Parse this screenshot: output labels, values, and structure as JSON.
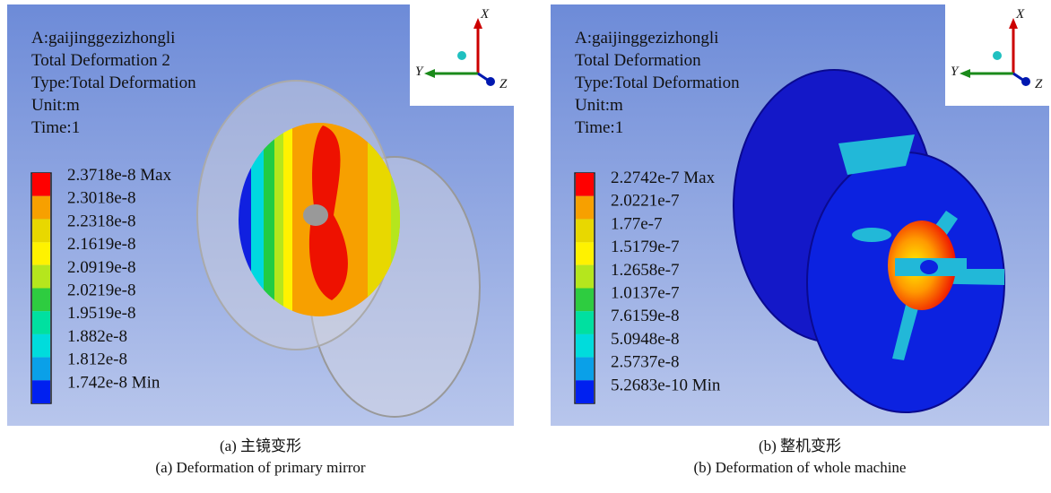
{
  "panels": [
    {
      "header": [
        "A:gaijinggezizhongli",
        "Total Deformation 2",
        "Type:Total Deformation",
        "Unit:m",
        "Time:1"
      ],
      "legend": [
        "2.3718e-8 Max",
        "2.3018e-8",
        "2.2318e-8",
        "2.1619e-8",
        "2.0919e-8",
        "2.0219e-8",
        "1.9519e-8",
        "1.882e-8",
        "1.812e-8",
        "1.742e-8 Min"
      ],
      "axes": {
        "x": "X",
        "y": "Y",
        "z": "Z"
      },
      "caption_cn": "(a) 主镜变形",
      "caption_en": "(a) Deformation of primary mirror"
    },
    {
      "header": [
        "A:gaijinggezizhongli",
        "Total Deformation",
        "Type:Total Deformation",
        "Unit:m",
        "Time:1"
      ],
      "legend": [
        "2.2742e-7 Max",
        "2.0221e-7",
        "1.77e-7",
        "1.5179e-7",
        "1.2658e-7",
        "1.0137e-7",
        "7.6159e-8",
        "5.0948e-8",
        "2.5737e-8",
        "5.2683e-10 Min"
      ],
      "axes": {
        "x": "X",
        "y": "Y",
        "z": "Z"
      },
      "caption_cn": "(b) 整机变形",
      "caption_en": "(b) Deformation of whole machine"
    }
  ]
}
